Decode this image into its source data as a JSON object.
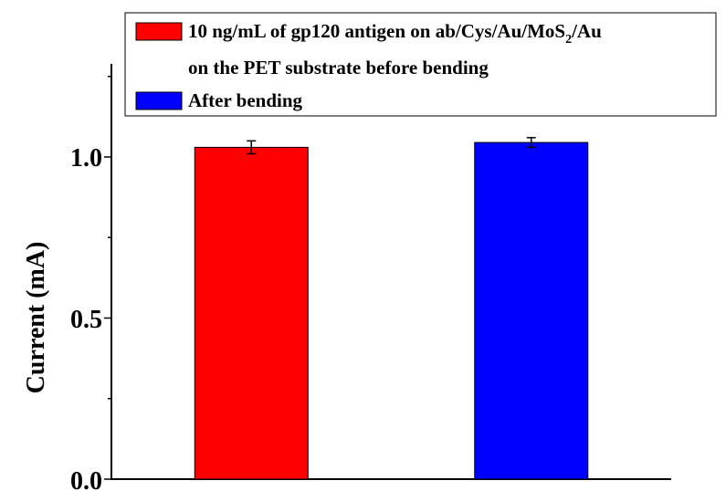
{
  "chart_data": {
    "type": "bar",
    "categories": [
      "",
      ""
    ],
    "series": [
      {
        "name_parts": [
          "10 ng/mL of gp120 antigen on ab/Cys/Au/MoS",
          "2",
          "/Au"
        ],
        "name_line2": "on the PET substrate before bending",
        "values": [
          1.03,
          null
        ],
        "errors": [
          0.02,
          null
        ],
        "color": "#ff0000"
      },
      {
        "name": "After bending",
        "values": [
          null,
          1.045
        ],
        "errors": [
          null,
          0.015
        ],
        "color": "#0000ff"
      }
    ],
    "xlabel": "",
    "ylabel": "Current (mA)",
    "ylim": [
      0,
      1.0
    ],
    "yticks": [
      "0.0",
      "0.5",
      "1.0"
    ],
    "legend_position": "top-center",
    "grid": false
  }
}
